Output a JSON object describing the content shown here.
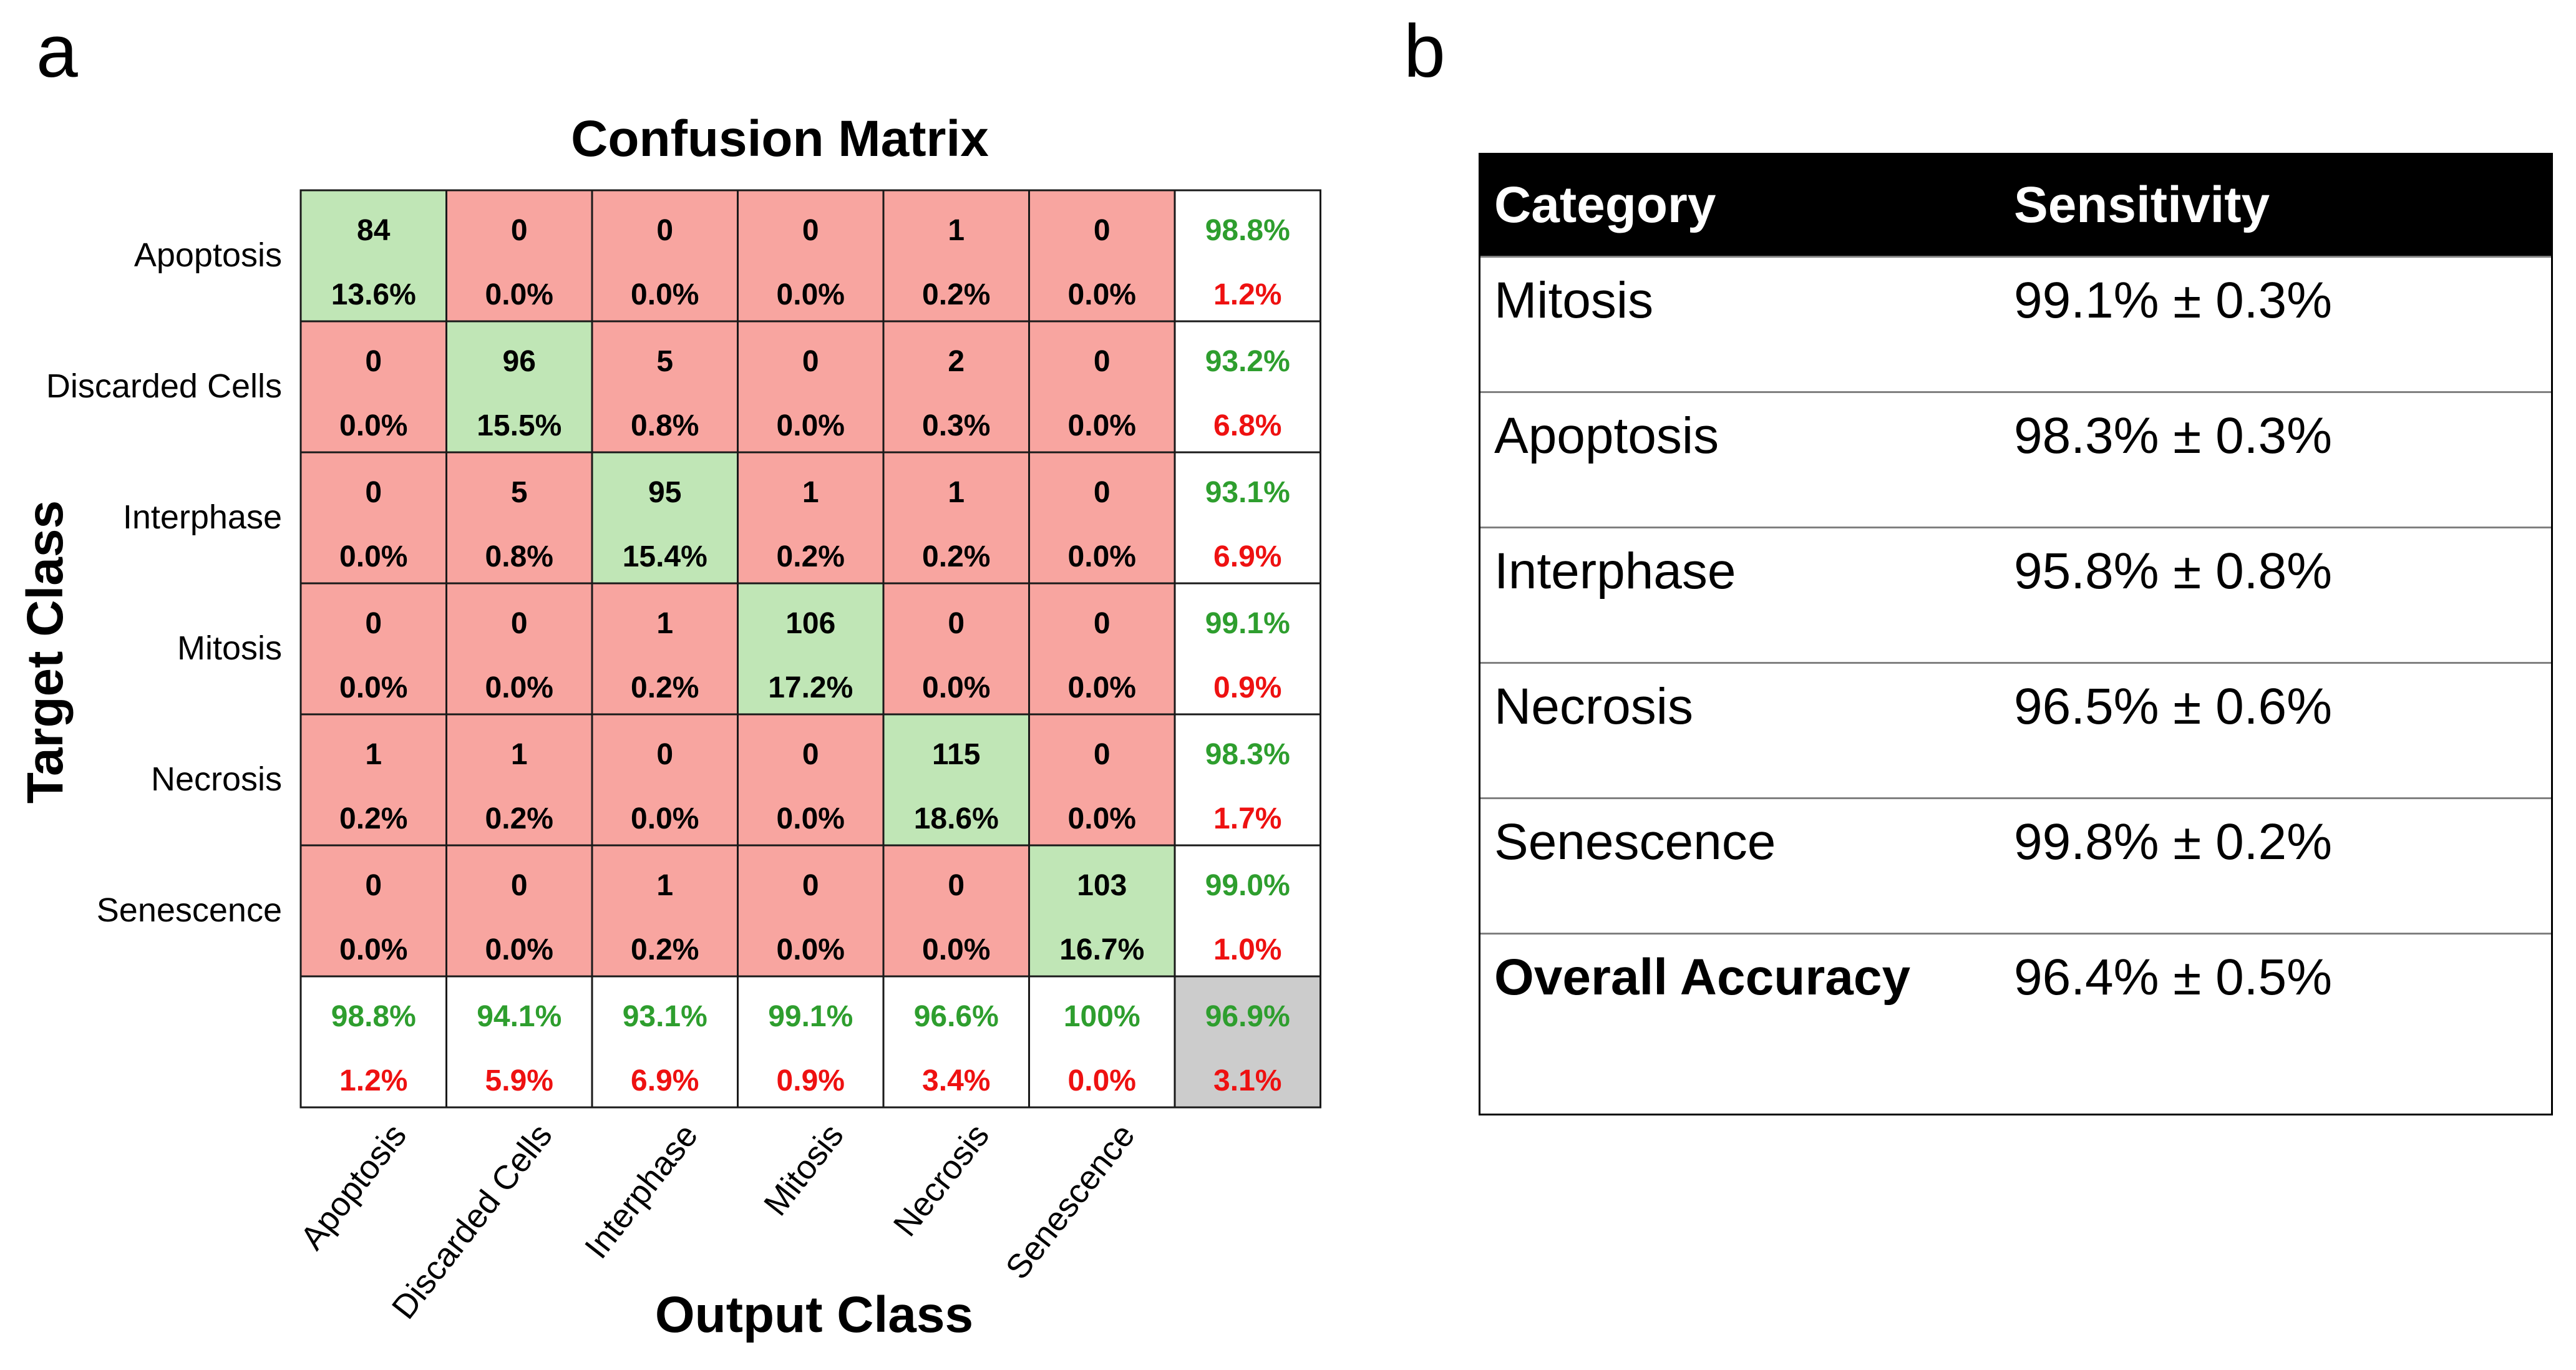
{
  "panel_a_label": "a",
  "panel_b_label": "b",
  "colors": {
    "green_fill": "#c0e6b6",
    "red_fill": "#f8a5a0",
    "gray_fill": "#cccccc",
    "green_text": "#2e9e2e",
    "red_text": "#ee1111"
  },
  "chart_data": {
    "type": "heatmap",
    "title": "Confusion Matrix",
    "xlabel": "Output Class",
    "ylabel": "Target Class",
    "target_classes": [
      "Apoptosis",
      "Discarded Cells",
      "Interphase",
      "Mitosis",
      "Necrosis",
      "Senescence"
    ],
    "output_classes": [
      "Apoptosis",
      "Discarded Cells",
      "Interphase",
      "Mitosis",
      "Necrosis",
      "Senescence"
    ],
    "counts": [
      [
        84,
        0,
        0,
        0,
        1,
        0
      ],
      [
        0,
        96,
        5,
        0,
        2,
        0
      ],
      [
        0,
        5,
        95,
        1,
        1,
        0
      ],
      [
        0,
        0,
        1,
        106,
        0,
        0
      ],
      [
        1,
        1,
        0,
        0,
        115,
        0
      ],
      [
        0,
        0,
        1,
        0,
        0,
        103
      ]
    ],
    "percentages": [
      [
        "13.6%",
        "0.0%",
        "0.0%",
        "0.0%",
        "0.2%",
        "0.0%"
      ],
      [
        "0.0%",
        "15.5%",
        "0.8%",
        "0.0%",
        "0.3%",
        "0.0%"
      ],
      [
        "0.0%",
        "0.8%",
        "15.4%",
        "0.2%",
        "0.2%",
        "0.0%"
      ],
      [
        "0.0%",
        "0.0%",
        "0.2%",
        "17.2%",
        "0.0%",
        "0.0%"
      ],
      [
        "0.2%",
        "0.2%",
        "0.0%",
        "0.0%",
        "18.6%",
        "0.0%"
      ],
      [
        "0.0%",
        "0.0%",
        "0.2%",
        "0.0%",
        "0.0%",
        "16.7%"
      ]
    ],
    "row_summary": [
      [
        "98.8%",
        "1.2%"
      ],
      [
        "93.2%",
        "6.8%"
      ],
      [
        "93.1%",
        "6.9%"
      ],
      [
        "99.1%",
        "0.9%"
      ],
      [
        "98.3%",
        "1.7%"
      ],
      [
        "99.0%",
        "1.0%"
      ]
    ],
    "column_summary": [
      [
        "98.8%",
        "1.2%"
      ],
      [
        "94.1%",
        "5.9%"
      ],
      [
        "93.1%",
        "6.9%"
      ],
      [
        "99.1%",
        "0.9%"
      ],
      [
        "96.6%",
        "3.4%"
      ],
      [
        "100%",
        "0.0%"
      ]
    ],
    "overall": [
      "96.9%",
      "3.1%"
    ]
  },
  "table": {
    "headers": [
      "Category",
      "Sensitivity"
    ],
    "rows": [
      {
        "category": "Mitosis",
        "sensitivity": "99.1% ± 0.3%"
      },
      {
        "category": "Apoptosis",
        "sensitivity": "98.3% ± 0.3%"
      },
      {
        "category": "Interphase",
        "sensitivity": "95.8% ± 0.8%"
      },
      {
        "category": "Necrosis",
        "sensitivity": "96.5% ± 0.6%"
      },
      {
        "category": "Senescence",
        "sensitivity": "99.8% ± 0.2%"
      },
      {
        "category": "Overall Accuracy",
        "sensitivity": "96.4% ± 0.5%"
      }
    ]
  }
}
